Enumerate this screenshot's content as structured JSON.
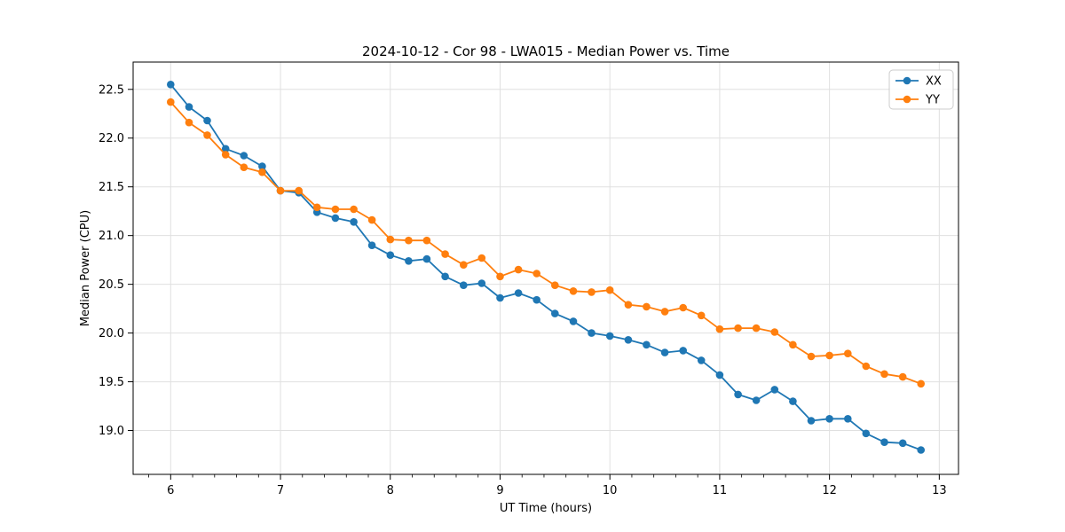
{
  "figure": {
    "background": "#ffffff",
    "spine_color": "#000000",
    "grid_color": "#e0e0e0",
    "legend_border_color": "#cccccc",
    "legend_background": "#ffffff"
  },
  "chart_data": {
    "type": "line",
    "title": "2024-10-12 - Cor 98 - LWA015 - Median Power vs. Time",
    "xlabel": "UT Time (hours)",
    "ylabel": "Median Power (CPU)",
    "xlim": [
      5.658,
      13.175
    ],
    "ylim": [
      18.55,
      22.78
    ],
    "xticks": [
      6,
      7,
      8,
      9,
      10,
      11,
      12,
      13
    ],
    "yticks": [
      19.0,
      19.5,
      20.0,
      20.5,
      21.0,
      21.5,
      22.0,
      22.5
    ],
    "minor_xtick_step": 0.2,
    "grid": true,
    "legend_position": "upper right",
    "marker": "o",
    "x": [
      6.0,
      6.167,
      6.333,
      6.5,
      6.667,
      6.833,
      7.0,
      7.167,
      7.333,
      7.5,
      7.667,
      7.833,
      8.0,
      8.167,
      8.333,
      8.5,
      8.667,
      8.833,
      9.0,
      9.167,
      9.333,
      9.5,
      9.667,
      9.833,
      10.0,
      10.167,
      10.333,
      10.5,
      10.667,
      10.833,
      11.0,
      11.167,
      11.333,
      11.5,
      11.667,
      11.833,
      12.0,
      12.167,
      12.333,
      12.5,
      12.667,
      12.833
    ],
    "series": [
      {
        "name": "XX",
        "color": "#1f77b4",
        "values": [
          22.55,
          22.32,
          22.18,
          21.89,
          21.82,
          21.71,
          21.46,
          21.44,
          21.24,
          21.18,
          21.14,
          20.9,
          20.8,
          20.74,
          20.76,
          20.58,
          20.49,
          20.51,
          20.36,
          20.41,
          20.34,
          20.2,
          20.12,
          20.0,
          19.97,
          19.93,
          19.88,
          19.8,
          19.82,
          19.72,
          19.57,
          19.37,
          19.31,
          19.42,
          19.3,
          19.1,
          19.12,
          19.12,
          18.97,
          18.88,
          18.87,
          18.8
        ]
      },
      {
        "name": "YY",
        "color": "#ff7f0e",
        "values": [
          22.37,
          22.16,
          22.03,
          21.83,
          21.7,
          21.65,
          21.46,
          21.46,
          21.29,
          21.27,
          21.27,
          21.16,
          20.96,
          20.95,
          20.95,
          20.81,
          20.7,
          20.77,
          20.58,
          20.65,
          20.61,
          20.49,
          20.43,
          20.42,
          20.44,
          20.29,
          20.27,
          20.22,
          20.26,
          20.18,
          20.04,
          20.05,
          20.05,
          20.01,
          19.88,
          19.76,
          19.77,
          19.79,
          19.66,
          19.58,
          19.55,
          19.48
        ]
      }
    ]
  }
}
